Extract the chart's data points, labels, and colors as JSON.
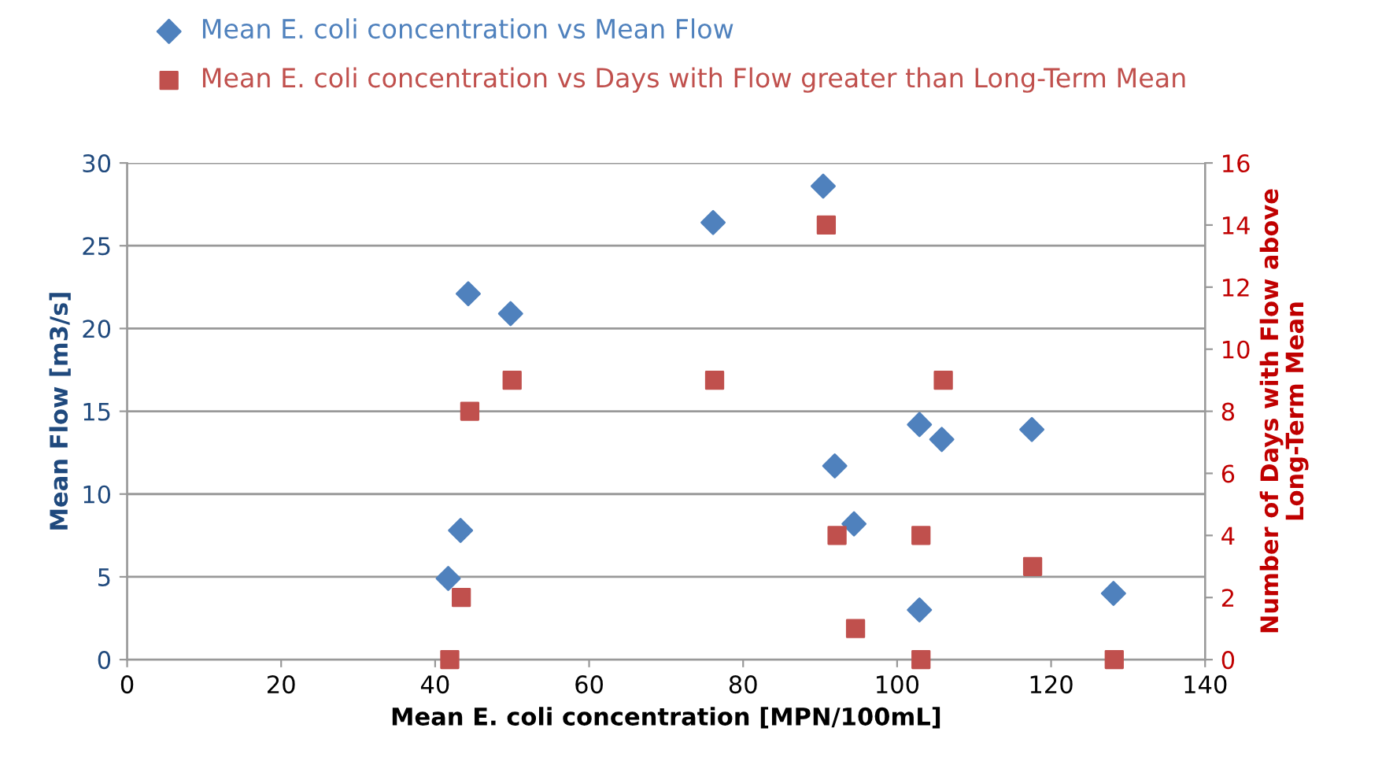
{
  "chart_data": {
    "type": "scatter",
    "xlabel": "Mean E. coli concentration [MPN/100mL]",
    "ylabel": "Mean Flow [m3/s]",
    "y2label": "Number of Days with Flow above\nLong-Term Mean",
    "xlim": [
      0,
      140
    ],
    "xticks": [
      0,
      20,
      40,
      60,
      80,
      100,
      120,
      140
    ],
    "ylim": [
      0,
      30
    ],
    "yticks": [
      0,
      5,
      10,
      15,
      20,
      25,
      30
    ],
    "y2lim": [
      0,
      16
    ],
    "y2ticks": [
      0,
      2,
      4,
      6,
      8,
      10,
      12,
      14,
      16
    ],
    "grid": "y",
    "legend": "top left",
    "series": [
      {
        "name": "Mean E. coli concentration vs Mean Flow",
        "color": "#4f81bd",
        "marker": "diamond",
        "x": [
          41.7,
          43.3,
          44.3,
          49.8,
          76.1,
          90.4,
          91.9,
          94.4,
          102.9,
          102.9,
          105.8,
          117.5,
          128.1
        ],
        "values": [
          4.9,
          7.8,
          22.1,
          20.9,
          26.4,
          28.6,
          11.7,
          8.2,
          14.2,
          3.0,
          13.3,
          13.9,
          4.0
        ]
      },
      {
        "name": "Mean E. coli concentration vs Days with Flow greater than Long-Term Mean",
        "color": "#c0504d",
        "marker": "square",
        "axis": "y2",
        "x": [
          41.9,
          43.4,
          44.5,
          50.0,
          76.3,
          90.8,
          92.2,
          94.6,
          103.1,
          103.1,
          106.0,
          117.6,
          128.2
        ],
        "values": [
          0,
          2,
          8,
          9,
          9,
          14,
          4,
          1,
          4,
          0,
          9,
          3,
          0
        ]
      }
    ]
  }
}
